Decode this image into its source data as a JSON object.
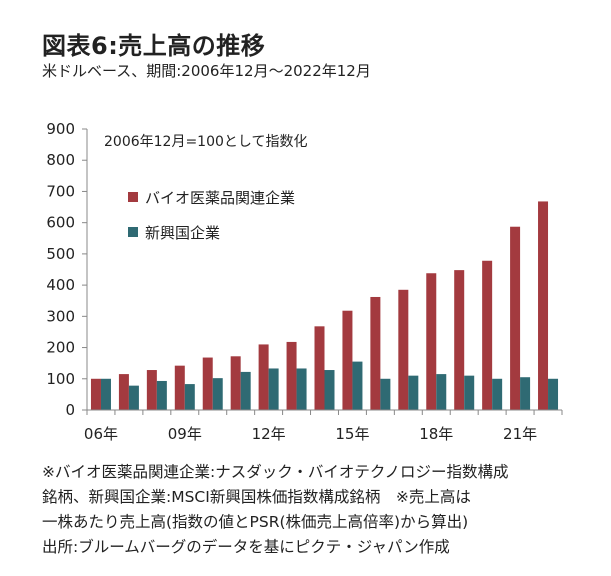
{
  "title": "図表6:売上高の推移",
  "subtitle": "米ドルベース、期間:2006年12月〜2022年12月",
  "annotation": "2006年12月=100として指数化",
  "notes": [
    "※バイオ医薬品関連企業:ナスダック・バイオテクノロジー指数構成",
    "銘柄、新興国企業:MSCI新興国株価指数構成銘柄　※売上高は",
    "一株あたり売上高(指数の値とPSR(株価売上高倍率)から算出)",
    "出所:ブルームバーグのデータを基にピクテ・ジャパン作成"
  ],
  "colors": {
    "bio": "#a33a3f",
    "em": "#2f6a73",
    "axis": "#888888",
    "text": "#222222"
  },
  "chart_data": {
    "type": "bar",
    "title": "売上高の推移",
    "xlabel": "",
    "ylabel": "",
    "ylim": [
      0,
      900
    ],
    "yticks": [
      0,
      100,
      200,
      300,
      400,
      500,
      600,
      700,
      800,
      900
    ],
    "categories": [
      "06",
      "07",
      "08",
      "09",
      "10",
      "11",
      "12",
      "13",
      "14",
      "15",
      "16",
      "17",
      "18",
      "19",
      "20",
      "21",
      "22"
    ],
    "tick_labels": [
      {
        "index": 0,
        "label": "06年"
      },
      {
        "index": 3,
        "label": "09年"
      },
      {
        "index": 6,
        "label": "12年"
      },
      {
        "index": 9,
        "label": "15年"
      },
      {
        "index": 12,
        "label": "18年"
      },
      {
        "index": 15,
        "label": "21年"
      }
    ],
    "legend": [
      "バイオ医薬品関連企業",
      "新興国企業"
    ],
    "legend_position": "top-left",
    "series": [
      {
        "name": "バイオ医薬品関連企業",
        "color": "#a33a3f",
        "values": [
          100,
          115,
          128,
          142,
          168,
          172,
          210,
          218,
          268,
          318,
          362,
          385,
          438,
          448,
          478,
          587,
          668
        ]
      },
      {
        "name": "新興国企業",
        "color": "#2f6a73",
        "values": [
          100,
          78,
          93,
          83,
          102,
          122,
          133,
          133,
          128,
          155,
          100,
          110,
          115,
          110,
          100,
          105,
          100
        ]
      }
    ]
  }
}
